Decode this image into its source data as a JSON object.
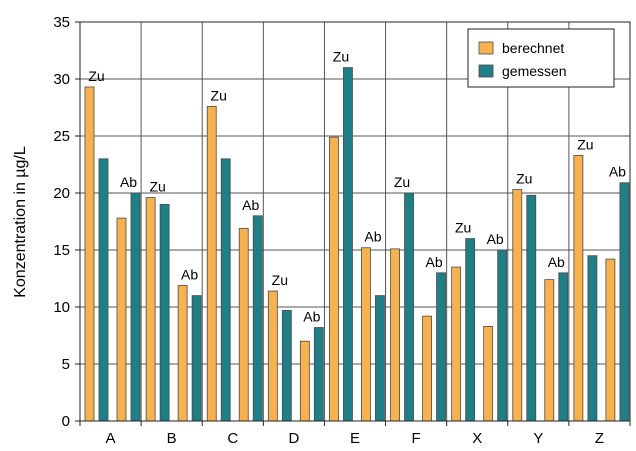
{
  "chart_data": {
    "type": "bar",
    "title": "",
    "xlabel": "",
    "ylabel": "Konzentration in µg/L",
    "ylim": [
      0,
      35
    ],
    "yticks": [
      0,
      5,
      10,
      15,
      20,
      25,
      30,
      35
    ],
    "grid": true,
    "legend_position": "top-right",
    "colors": {
      "berechnet": "#f7b14f",
      "gemessen": "#1f7f87",
      "edge": "#4a4a4a"
    },
    "series": [
      {
        "name": "berechnet"
      },
      {
        "name": "gemessen"
      }
    ],
    "groups": [
      {
        "category": "A",
        "pairs": [
          {
            "label": "Zu",
            "berechnet": 29.3,
            "gemessen": 23.0
          },
          {
            "label": "Ab",
            "berechnet": 17.8,
            "gemessen": 20.0
          }
        ]
      },
      {
        "category": "B",
        "pairs": [
          {
            "label": "Zu",
            "berechnet": 19.6,
            "gemessen": 19.0
          },
          {
            "label": "Ab",
            "berechnet": 11.9,
            "gemessen": 11.0
          }
        ]
      },
      {
        "category": "C",
        "pairs": [
          {
            "label": "Zu",
            "berechnet": 27.6,
            "gemessen": 23.0
          },
          {
            "label": "Ab",
            "berechnet": 16.9,
            "gemessen": 18.0
          }
        ]
      },
      {
        "category": "D",
        "pairs": [
          {
            "label": "Zu",
            "berechnet": 11.4,
            "gemessen": 9.7
          },
          {
            "label": "Ab",
            "berechnet": 7.0,
            "gemessen": 8.2
          }
        ]
      },
      {
        "category": "E",
        "pairs": [
          {
            "label": "Zu",
            "berechnet": 24.9,
            "gemessen": 31.0
          },
          {
            "label": "Ab",
            "berechnet": 15.2,
            "gemessen": 11.0
          }
        ]
      },
      {
        "category": "F",
        "pairs": [
          {
            "label": "Zu",
            "berechnet": 15.1,
            "gemessen": 20.0
          },
          {
            "label": "Ab",
            "berechnet": 9.2,
            "gemessen": 13.0
          }
        ]
      },
      {
        "category": "X",
        "pairs": [
          {
            "label": "Zu",
            "berechnet": 13.5,
            "gemessen": 16.0
          },
          {
            "label": "Ab",
            "berechnet": 8.3,
            "gemessen": 15.0
          }
        ]
      },
      {
        "category": "Y",
        "pairs": [
          {
            "label": "Zu",
            "berechnet": 20.3,
            "gemessen": 19.8
          },
          {
            "label": "Ab",
            "berechnet": 12.4,
            "gemessen": 13.0
          }
        ]
      },
      {
        "category": "Z",
        "pairs": [
          {
            "label": "Zu",
            "berechnet": 23.3,
            "gemessen": 14.5
          },
          {
            "label": "Ab",
            "berechnet": 14.2,
            "gemessen": 20.9
          }
        ]
      }
    ]
  }
}
